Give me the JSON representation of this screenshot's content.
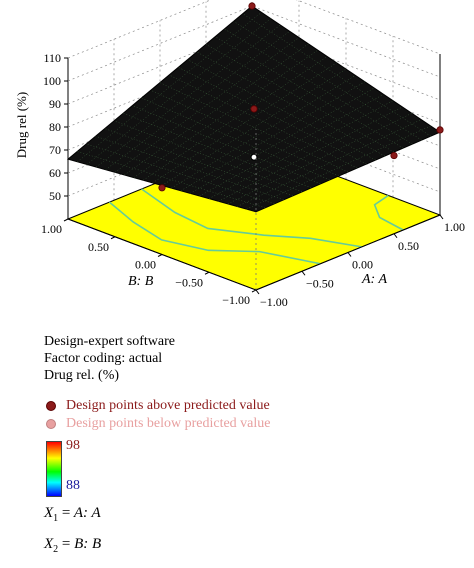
{
  "chart_data": {
    "type": "surface3d",
    "zlabel": "Drug rel (%)",
    "xlabel": "A: A",
    "ylabel": "B: B",
    "z_ticks": [
      "50",
      "60",
      "70",
      "80",
      "90",
      "100",
      "110"
    ],
    "x_ticks": [
      "−1.00",
      "−0.50",
      "0.00",
      "0.50",
      "1.00"
    ],
    "y_ticks": [
      "1.00",
      "0.50",
      "0.00",
      "−0.50",
      "−1.00"
    ],
    "zlim": [
      40,
      110
    ],
    "xlim": [
      -1,
      1
    ],
    "ylim": [
      -1,
      1
    ],
    "surface_corners": [
      {
        "A": -1,
        "B": -1,
        "z": 74
      },
      {
        "A": 1,
        "B": -1,
        "z": 76
      },
      {
        "A": 1,
        "B": 1,
        "z": 100
      },
      {
        "A": -1,
        "B": 1,
        "z": 66
      }
    ],
    "design_points_above": [
      {
        "A": 1,
        "B": 1,
        "z": 100
      },
      {
        "A": 0,
        "B": 0,
        "z": 87
      },
      {
        "A": -1,
        "B": 0,
        "z": 69
      },
      {
        "A": 1,
        "B": -1,
        "z": 77
      },
      {
        "A": 0.5,
        "B": -1,
        "z": 74
      }
    ],
    "design_points_below": [
      {
        "A": 0,
        "B": 0,
        "z": 66
      }
    ],
    "contour_fill_color": "#ffff00",
    "contour_line_color": "#66cc99",
    "surface_color": "#111111"
  },
  "info": {
    "software": "Design-expert software",
    "coding": "Factor coding: actual",
    "response": "Drug rel. (%)"
  },
  "legend": {
    "above": "Design points above predicted value",
    "below": "Design points below predicted value",
    "above_color": "#8b1a1a",
    "below_color": "#e8a0a0"
  },
  "colorbar": {
    "max": "98",
    "min": "88",
    "max_color": "#8b1a1a",
    "min_color": "#1a1a9c"
  },
  "equations": {
    "x1_sym": "X",
    "x1_sub": "1",
    "x1_rhs": "A: A",
    "x2_sym": "X",
    "x2_sub": "2",
    "x2_rhs": "B: B"
  }
}
